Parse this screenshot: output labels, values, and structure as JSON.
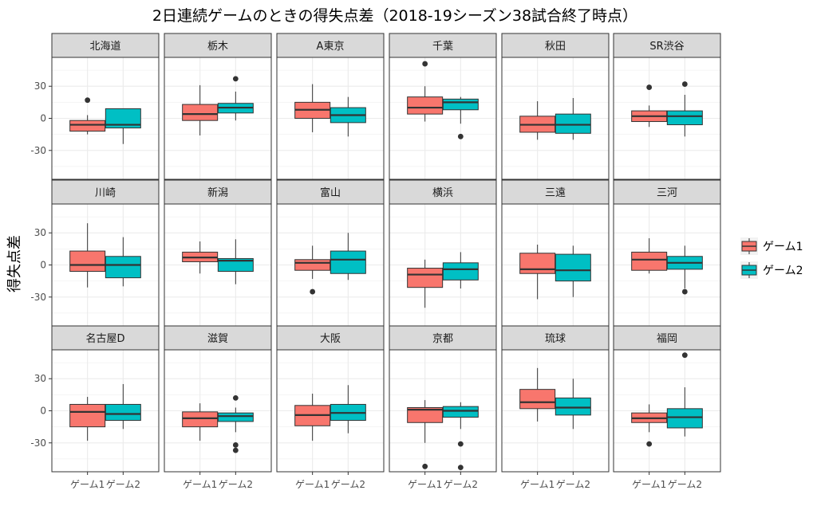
{
  "chart_data": {
    "type": "boxplot",
    "title": "2日連続ゲームのときの得失点差（2018-19シーズン38試合終了時点）",
    "ylabel": "得失点差",
    "xlabel": "",
    "categories": [
      "ゲーム1",
      "ゲーム2"
    ],
    "yticks": [
      -30,
      0,
      30
    ],
    "ylim": [
      -57,
      57
    ],
    "grid": true,
    "legend_position": "right",
    "colors": {
      "ゲーム1": "#F8766D",
      "ゲーム2": "#00BFC4"
    },
    "legend": [
      {
        "label": "ゲーム1",
        "color": "#F8766D"
      },
      {
        "label": "ゲーム2",
        "color": "#00BFC4"
      }
    ],
    "facets": [
      {
        "name": "北海道",
        "boxes": [
          {
            "group": "ゲーム1",
            "whisker_low": -15,
            "q1": -12,
            "median": -6,
            "q3": -2,
            "whisker_high": 3,
            "outliers": [
              17
            ]
          },
          {
            "group": "ゲーム2",
            "whisker_low": -24,
            "q1": -9,
            "median": -6,
            "q3": 9,
            "whisker_high": 9,
            "outliers": []
          }
        ]
      },
      {
        "name": "栃木",
        "boxes": [
          {
            "group": "ゲーム1",
            "whisker_low": -16,
            "q1": -2,
            "median": 4,
            "q3": 13,
            "whisker_high": 31,
            "outliers": []
          },
          {
            "group": "ゲーム2",
            "whisker_low": -2,
            "q1": 5,
            "median": 10,
            "q3": 14,
            "whisker_high": 25,
            "outliers": [
              37
            ]
          }
        ]
      },
      {
        "name": "A東京",
        "boxes": [
          {
            "group": "ゲーム1",
            "whisker_low": -13,
            "q1": 0,
            "median": 8,
            "q3": 15,
            "whisker_high": 32,
            "outliers": []
          },
          {
            "group": "ゲーム2",
            "whisker_low": -17,
            "q1": -4,
            "median": 3,
            "q3": 10,
            "whisker_high": 20,
            "outliers": []
          }
        ]
      },
      {
        "name": "千葉",
        "boxes": [
          {
            "group": "ゲーム1",
            "whisker_low": -3,
            "q1": 4,
            "median": 10,
            "q3": 20,
            "whisker_high": 30,
            "outliers": [
              51
            ]
          },
          {
            "group": "ゲーム2",
            "whisker_low": -5,
            "q1": 8,
            "median": 15,
            "q3": 18,
            "whisker_high": 20,
            "outliers": [
              -17
            ]
          }
        ]
      },
      {
        "name": "秋田",
        "boxes": [
          {
            "group": "ゲーム1",
            "whisker_low": -20,
            "q1": -13,
            "median": -6,
            "q3": 2,
            "whisker_high": 16,
            "outliers": []
          },
          {
            "group": "ゲーム2",
            "whisker_low": -20,
            "q1": -14,
            "median": -6,
            "q3": 4,
            "whisker_high": 19,
            "outliers": []
          }
        ]
      },
      {
        "name": "SR渋谷",
        "boxes": [
          {
            "group": "ゲーム1",
            "whisker_low": -8,
            "q1": -3,
            "median": 2,
            "q3": 7,
            "whisker_high": 12,
            "outliers": [
              29
            ]
          },
          {
            "group": "ゲーム2",
            "whisker_low": -17,
            "q1": -6,
            "median": 2,
            "q3": 7,
            "whisker_high": 22,
            "outliers": [
              32
            ]
          }
        ]
      },
      {
        "name": "川崎",
        "boxes": [
          {
            "group": "ゲーム1",
            "whisker_low": -21,
            "q1": -6,
            "median": 0,
            "q3": 13,
            "whisker_high": 39,
            "outliers": []
          },
          {
            "group": "ゲーム2",
            "whisker_low": -20,
            "q1": -12,
            "median": 0,
            "q3": 8,
            "whisker_high": 26,
            "outliers": []
          }
        ]
      },
      {
        "name": "新潟",
        "boxes": [
          {
            "group": "ゲーム1",
            "whisker_low": -8,
            "q1": 3,
            "median": 7,
            "q3": 12,
            "whisker_high": 22,
            "outliers": []
          },
          {
            "group": "ゲーム2",
            "whisker_low": -18,
            "q1": -6,
            "median": 4,
            "q3": 6,
            "whisker_high": 24,
            "outliers": []
          }
        ]
      },
      {
        "name": "富山",
        "boxes": [
          {
            "group": "ゲーム1",
            "whisker_low": -13,
            "q1": -5,
            "median": 2,
            "q3": 5,
            "whisker_high": 18,
            "outliers": [
              -25
            ]
          },
          {
            "group": "ゲーム2",
            "whisker_low": -14,
            "q1": -8,
            "median": 5,
            "q3": 13,
            "whisker_high": 30,
            "outliers": []
          }
        ]
      },
      {
        "name": "横浜",
        "boxes": [
          {
            "group": "ゲーム1",
            "whisker_low": -40,
            "q1": -21,
            "median": -9,
            "q3": -3,
            "whisker_high": 5,
            "outliers": []
          },
          {
            "group": "ゲーム2",
            "whisker_low": -22,
            "q1": -14,
            "median": -4,
            "q3": 2,
            "whisker_high": 12,
            "outliers": []
          }
        ]
      },
      {
        "name": "三遠",
        "boxes": [
          {
            "group": "ゲーム1",
            "whisker_low": -32,
            "q1": -8,
            "median": -4,
            "q3": 11,
            "whisker_high": 19,
            "outliers": []
          },
          {
            "group": "ゲーム2",
            "whisker_low": -30,
            "q1": -15,
            "median": -5,
            "q3": 10,
            "whisker_high": 18,
            "outliers": []
          }
        ]
      },
      {
        "name": "三河",
        "boxes": [
          {
            "group": "ゲーム1",
            "whisker_low": -8,
            "q1": -5,
            "median": 5,
            "q3": 12,
            "whisker_high": 25,
            "outliers": []
          },
          {
            "group": "ゲーム2",
            "whisker_low": -22,
            "q1": -4,
            "median": 2,
            "q3": 8,
            "whisker_high": 18,
            "outliers": [
              -25
            ]
          }
        ]
      },
      {
        "name": "名古屋D",
        "boxes": [
          {
            "group": "ゲーム1",
            "whisker_low": -28,
            "q1": -15,
            "median": -1,
            "q3": 6,
            "whisker_high": 13,
            "outliers": []
          },
          {
            "group": "ゲーム2",
            "whisker_low": -17,
            "q1": -9,
            "median": -3,
            "q3": 6,
            "whisker_high": 25,
            "outliers": []
          }
        ]
      },
      {
        "name": "滋賀",
        "boxes": [
          {
            "group": "ゲーム1",
            "whisker_low": -28,
            "q1": -15,
            "median": -7,
            "q3": -1,
            "whisker_high": 7,
            "outliers": []
          },
          {
            "group": "ゲーム2",
            "whisker_low": -20,
            "q1": -10,
            "median": -5,
            "q3": -2,
            "whisker_high": 3,
            "outliers": [
              12,
              -32,
              -37
            ]
          }
        ]
      },
      {
        "name": "大阪",
        "boxes": [
          {
            "group": "ゲーム1",
            "whisker_low": -28,
            "q1": -14,
            "median": -4,
            "q3": 5,
            "whisker_high": 16,
            "outliers": []
          },
          {
            "group": "ゲーム2",
            "whisker_low": -21,
            "q1": -9,
            "median": -2,
            "q3": 6,
            "whisker_high": 24,
            "outliers": []
          }
        ]
      },
      {
        "name": "京都",
        "boxes": [
          {
            "group": "ゲーム1",
            "whisker_low": -30,
            "q1": -11,
            "median": 1,
            "q3": 3,
            "whisker_high": 10,
            "outliers": [
              -52
            ]
          },
          {
            "group": "ゲーム2",
            "whisker_low": -17,
            "q1": -6,
            "median": 0,
            "q3": 4,
            "whisker_high": 8,
            "outliers": [
              -31,
              -53
            ]
          }
        ]
      },
      {
        "name": "琉球",
        "boxes": [
          {
            "group": "ゲーム1",
            "whisker_low": -10,
            "q1": 2,
            "median": 8,
            "q3": 20,
            "whisker_high": 40,
            "outliers": []
          },
          {
            "group": "ゲーム2",
            "whisker_low": -17,
            "q1": -4,
            "median": 3,
            "q3": 12,
            "whisker_high": 30,
            "outliers": []
          }
        ]
      },
      {
        "name": "福岡",
        "boxes": [
          {
            "group": "ゲーム1",
            "whisker_low": -20,
            "q1": -11,
            "median": -7,
            "q3": -2,
            "whisker_high": 6,
            "outliers": [
              -31
            ]
          },
          {
            "group": "ゲーム2",
            "whisker_low": -24,
            "q1": -16,
            "median": -6,
            "q3": 2,
            "whisker_high": 22,
            "outliers": [
              52
            ]
          }
        ]
      }
    ]
  }
}
